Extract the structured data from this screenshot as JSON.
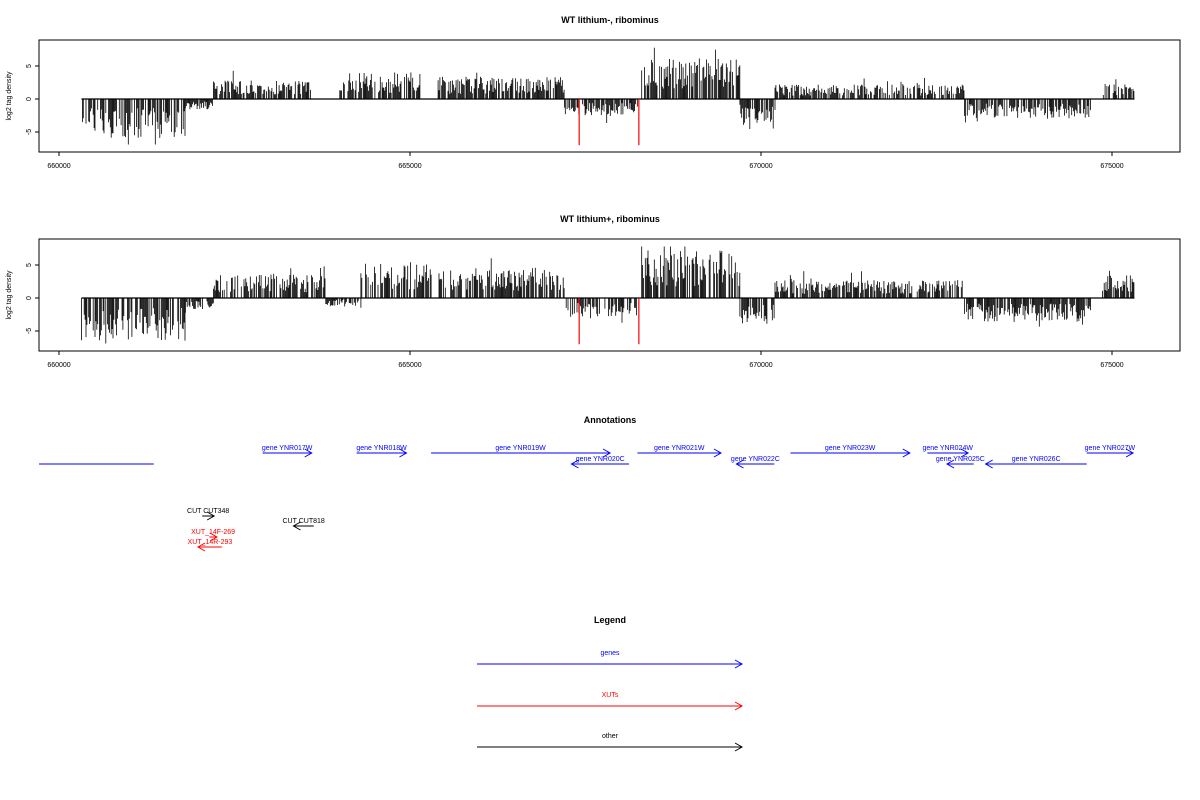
{
  "chart_data": [
    {
      "type": "bar",
      "title": "WT lithium-, ribominus",
      "ylabel": "log2 tag density",
      "x_range": [
        660000,
        675300
      ],
      "ylim": [
        -7.5,
        8.5
      ],
      "y_ticks": [
        -5,
        0,
        5
      ],
      "y_tick_labels": [
        "-5",
        "0",
        "5"
      ],
      "x_ticks": [
        660000,
        665000,
        670000,
        675000
      ],
      "x_tick_labels": [
        "660000",
        "665000",
        "670000",
        "675000"
      ],
      "highlight_color": "#ff0000",
      "bar_color": "#000000",
      "highlights": [
        {
          "x": 667410,
          "y": -7.0
        },
        {
          "x": 668260,
          "y": -7.0
        }
      ],
      "profile": [
        {
          "from": 660320,
          "to": 661800,
          "level": -4.6,
          "sign": -1
        },
        {
          "from": 661800,
          "to": 662200,
          "level": -1.2,
          "sign": -1
        },
        {
          "from": 662200,
          "to": 663600,
          "level": 2.2,
          "sign": 1
        },
        {
          "from": 664000,
          "to": 665150,
          "level": 3.1,
          "sign": 1
        },
        {
          "from": 665400,
          "to": 667200,
          "level": 2.6,
          "sign": 1
        },
        {
          "from": 667200,
          "to": 668250,
          "level": -2.0,
          "sign": -1
        },
        {
          "from": 668300,
          "to": 669700,
          "level": 4.8,
          "sign": 1
        },
        {
          "from": 669700,
          "to": 670200,
          "level": -2.8,
          "sign": -1
        },
        {
          "from": 670200,
          "to": 672900,
          "level": 1.7,
          "sign": 1
        },
        {
          "from": 672900,
          "to": 674700,
          "level": -2.3,
          "sign": -1
        },
        {
          "from": 674850,
          "to": 675320,
          "level": 1.8,
          "sign": 1
        }
      ]
    },
    {
      "type": "bar",
      "title": "WT lithium+, ribominus",
      "ylabel": "log2 tag density",
      "x_range": [
        660000,
        675300
      ],
      "ylim": [
        -7.5,
        8.5
      ],
      "y_ticks": [
        -5,
        0,
        5
      ],
      "y_tick_labels": [
        "-5",
        "0",
        "5"
      ],
      "x_ticks": [
        660000,
        665000,
        670000,
        675000
      ],
      "x_tick_labels": [
        "660000",
        "665000",
        "670000",
        "675000"
      ],
      "highlight_color": "#ff0000",
      "bar_color": "#000000",
      "highlights": [
        {
          "x": 667410,
          "y": -7.0
        },
        {
          "x": 668260,
          "y": -7.0
        }
      ],
      "profile": [
        {
          "from": 660320,
          "to": 661800,
          "level": -5.0,
          "sign": -1
        },
        {
          "from": 661800,
          "to": 662200,
          "level": -1.3,
          "sign": -1
        },
        {
          "from": 662200,
          "to": 663800,
          "level": 2.9,
          "sign": 1
        },
        {
          "from": 663800,
          "to": 664300,
          "level": -1.0,
          "sign": -1
        },
        {
          "from": 664300,
          "to": 665300,
          "level": 4.0,
          "sign": 1
        },
        {
          "from": 665400,
          "to": 667200,
          "level": 3.6,
          "sign": 1
        },
        {
          "from": 667200,
          "to": 668250,
          "level": -2.2,
          "sign": -1
        },
        {
          "from": 668300,
          "to": 669700,
          "level": 5.6,
          "sign": 1
        },
        {
          "from": 669700,
          "to": 670200,
          "level": -3.0,
          "sign": -1
        },
        {
          "from": 670200,
          "to": 672900,
          "level": 2.1,
          "sign": 1
        },
        {
          "from": 672900,
          "to": 674700,
          "level": -2.8,
          "sign": -1
        },
        {
          "from": 674850,
          "to": 675320,
          "level": 2.8,
          "sign": 1
        }
      ]
    }
  ],
  "annotations": {
    "title": "Annotations",
    "color_genes": "#0000ff",
    "color_xuts": "#ff0000",
    "color_other": "#000000",
    "items": [
      {
        "label": "",
        "start": 659700,
        "end": 661350,
        "strand": "none",
        "row": 1,
        "kind": "genes"
      },
      {
        "label": "gene YNR017W",
        "start": 662900,
        "end": 663600,
        "strand": "+",
        "row": 0,
        "kind": "genes"
      },
      {
        "label": "gene YNR018W",
        "start": 664240,
        "end": 664950,
        "strand": "+",
        "row": 0,
        "kind": "genes"
      },
      {
        "label": "gene YNR019W",
        "start": 665300,
        "end": 667850,
        "strand": "+",
        "row": 0,
        "kind": "genes"
      },
      {
        "label": "gene YNR020C",
        "start": 667300,
        "end": 668120,
        "strand": "-",
        "row": 1,
        "kind": "genes"
      },
      {
        "label": "gene YNR021W",
        "start": 668240,
        "end": 669430,
        "strand": "+",
        "row": 0,
        "kind": "genes"
      },
      {
        "label": "gene YNR022C",
        "start": 669650,
        "end": 670190,
        "strand": "-",
        "row": 1,
        "kind": "genes"
      },
      {
        "label": "gene YNR023W",
        "start": 670420,
        "end": 672120,
        "strand": "+",
        "row": 0,
        "kind": "genes"
      },
      {
        "label": "gene YNR024W",
        "start": 672370,
        "end": 672950,
        "strand": "+",
        "row": 0,
        "kind": "genes"
      },
      {
        "label": "gene YNR025C",
        "start": 672650,
        "end": 673030,
        "strand": "-",
        "row": 1,
        "kind": "genes"
      },
      {
        "label": "gene YNR026C",
        "start": 673200,
        "end": 674640,
        "strand": "-",
        "row": 1,
        "kind": "genes"
      },
      {
        "label": "gene YNR027W",
        "start": 674640,
        "end": 675300,
        "strand": "+",
        "row": 0,
        "kind": "genes"
      },
      {
        "label": "CUT CUT348",
        "start": 662040,
        "end": 662210,
        "strand": "+",
        "row": 2,
        "kind": "other"
      },
      {
        "label": "CUT CUT818",
        "start": 663340,
        "end": 663630,
        "strand": "-",
        "row": 3,
        "kind": "other"
      },
      {
        "label": "XUT_14F-269",
        "start": 662140,
        "end": 662250,
        "strand": "+",
        "row": 4,
        "kind": "xuts"
      },
      {
        "label": "XUT_14R-293",
        "start": 661980,
        "end": 662320,
        "strand": "-",
        "row": 5,
        "kind": "xuts"
      }
    ]
  },
  "legend": {
    "title": "Legend",
    "entries": [
      {
        "label": "genes",
        "color": "#0000ff"
      },
      {
        "label": "XUTs",
        "color": "#ff0000"
      },
      {
        "label": "other",
        "color": "#000000"
      }
    ]
  }
}
